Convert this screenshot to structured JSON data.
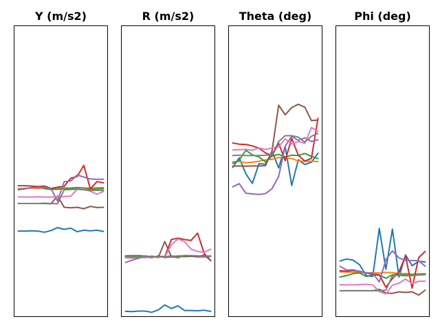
{
  "chart_data": [
    {
      "type": "line",
      "title": "Y (m/s2)",
      "xlabel": "",
      "ylabel": "",
      "ylim": [
        0,
        100
      ],
      "grid": false,
      "series": [
        {
          "color": "#1f77b4",
          "values": [
            29.4,
            29.4,
            29.5,
            29.4,
            29.0,
            29.6,
            30.6,
            30.0,
            30.4,
            29.2,
            29.7,
            29.5,
            29.7,
            29.3
          ]
        },
        {
          "color": "#ff7f0e",
          "values": [
            44.0,
            44.0,
            44.2,
            44.1,
            44.3,
            44.0,
            44.2,
            44.3,
            44.2,
            44.4,
            44.3,
            44.2,
            44.3,
            44.4
          ]
        },
        {
          "color": "#2ca02c",
          "values": [
            43.7,
            44.1,
            44.3,
            44.6,
            44.0,
            43.7,
            43.8,
            43.9,
            44.1,
            44.3,
            44.0,
            43.8,
            43.9,
            44.0
          ]
        },
        {
          "color": "#d62728",
          "values": [
            45.0,
            45.0,
            44.9,
            44.7,
            44.9,
            44.1,
            44.5,
            44.8,
            47.6,
            48.2,
            52.0,
            43.9,
            46.4,
            46.0
          ]
        },
        {
          "color": "#9467bd",
          "values": [
            43.6,
            43.9,
            44.4,
            44.4,
            44.5,
            44.0,
            39.7,
            46.4,
            46.6,
            48.7,
            48.0,
            47.3,
            47.2,
            47.2
          ]
        },
        {
          "color": "#8c564b",
          "values": [
            38.9,
            38.9,
            38.9,
            38.9,
            38.9,
            38.8,
            41.5,
            37.6,
            37.4,
            37.6,
            37.1,
            37.9,
            37.5,
            37.6
          ]
        },
        {
          "color": "#e377c2",
          "values": [
            41.2,
            41.1,
            41.1,
            41.2,
            41.1,
            41.1,
            41.2,
            41.3,
            41.4,
            43.8,
            43.9,
            43.1,
            42.1,
            43.0
          ]
        },
        {
          "color": "#7f7f7f",
          "values": [
            38.9,
            38.9,
            38.9,
            38.9,
            39.0,
            38.9,
            38.8,
            43.6,
            43.7,
            43.8,
            43.6,
            43.3,
            43.4,
            43.4
          ]
        }
      ]
    },
    {
      "type": "line",
      "title": "R (m/s2)",
      "xlabel": "",
      "ylabel": "",
      "ylim": [
        0,
        100
      ],
      "grid": false,
      "series": [
        {
          "color": "#1f77b4",
          "values": [
            1.8,
            1.7,
            1.9,
            1.9,
            1.5,
            2.3,
            4.0,
            2.8,
            3.7,
            2.1,
            2.1,
            2.0,
            2.2,
            1.8
          ]
        },
        {
          "color": "#ff7f0e",
          "values": [
            20.3,
            20.4,
            20.5,
            20.4,
            20.6,
            20.6,
            20.5,
            20.7,
            20.9,
            21.0,
            20.9,
            20.8,
            20.7,
            20.7
          ]
        },
        {
          "color": "#2ca02c",
          "values": [
            20.9,
            21.0,
            21.0,
            20.8,
            20.2,
            20.9,
            20.3,
            20.5,
            20.7,
            20.6,
            20.7,
            20.6,
            20.5,
            20.7
          ]
        },
        {
          "color": "#d62728",
          "values": [
            20.3,
            20.2,
            20.4,
            20.3,
            20.4,
            20.6,
            20.7,
            26.5,
            27.0,
            26.5,
            26.2,
            28.7,
            21.7,
            19.3
          ]
        },
        {
          "color": "#9467bd",
          "values": [
            18.6,
            19.4,
            20.1,
            20.9,
            20.6,
            20.5,
            20.6,
            20.9,
            20.2,
            21.0,
            20.8,
            20.5,
            20.5,
            20.7
          ]
        },
        {
          "color": "#8c564b",
          "values": [
            20.4,
            20.5,
            20.3,
            20.3,
            20.8,
            20.3,
            25.8,
            20.6,
            20.5,
            20.9,
            20.8,
            20.6,
            21.2,
            19.2
          ]
        },
        {
          "color": "#e377c2",
          "values": [
            20.4,
            20.3,
            20.5,
            20.3,
            20.4,
            20.5,
            20.6,
            24.7,
            26.7,
            25.8,
            23.2,
            22.4,
            22.1,
            23.2
          ]
        },
        {
          "color": "#7f7f7f",
          "values": [
            20.6,
            20.6,
            20.5,
            20.6,
            20.6,
            20.6,
            20.5,
            20.5,
            20.3,
            21.0,
            21.0,
            20.9,
            20.8,
            20.9
          ]
        }
      ]
    },
    {
      "type": "line",
      "title": "Theta (deg)",
      "xlabel": "",
      "ylabel": "",
      "ylim": [
        0,
        100
      ],
      "grid": false,
      "series": [
        {
          "color": "#1f77b4",
          "values": [
            51.3,
            54.6,
            49.1,
            45.8,
            52.6,
            52.4,
            56.8,
            51.1,
            58.5,
            45.1,
            53.9,
            52.3,
            53.1,
            56.2
          ]
        },
        {
          "color": "#ff7f0e",
          "values": [
            53.2,
            53.3,
            52.9,
            53.1,
            53.4,
            53.9,
            54.1,
            54.7,
            54.5,
            54.4,
            53.5,
            53.4,
            53.4,
            53.3
          ]
        },
        {
          "color": "#2ca02c",
          "values": [
            52.7,
            53.8,
            57.2,
            55.6,
            54.9,
            53.2,
            55.2,
            55.8,
            54.9,
            55.5,
            55.4,
            56.1,
            55.1,
            54.3
          ]
        },
        {
          "color": "#d62728",
          "values": [
            59.7,
            59.3,
            59.2,
            58.7,
            57.9,
            56.3,
            55.3,
            59.6,
            53.6,
            61.3,
            55.5,
            53.5,
            54.4,
            68.2
          ]
        },
        {
          "color": "#9467bd",
          "values": [
            44.6,
            45.7,
            42.4,
            42.2,
            42.0,
            42.3,
            44.0,
            48.2,
            58.6,
            62.0,
            60.6,
            61.5,
            60.2,
            60.8
          ]
        },
        {
          "color": "#8c564b",
          "values": [
            51.7,
            51.8,
            51.7,
            51.8,
            51.8,
            51.9,
            57.0,
            72.7,
            69.4,
            71.9,
            73.0,
            72.0,
            67.4,
            67.6
          ]
        },
        {
          "color": "#e377c2",
          "values": [
            57.3,
            57.4,
            57.5,
            57.2,
            58.0,
            57.5,
            58.0,
            58.4,
            61.1,
            59.4,
            60.2,
            59.6,
            65.0,
            63.7
          ]
        },
        {
          "color": "#7f7f7f",
          "values": [
            55.4,
            55.5,
            55.4,
            55.4,
            55.4,
            55.5,
            55.6,
            60.2,
            62.2,
            62.2,
            61.7,
            60.0,
            62.0,
            63.0
          ]
        }
      ]
    },
    {
      "type": "line",
      "title": "Phi (deg)",
      "xlabel": "",
      "ylabel": "",
      "ylim": [
        0,
        100
      ],
      "grid": false,
      "series": [
        {
          "color": "#1f77b4",
          "values": [
            19.1,
            19.8,
            19.4,
            17.8,
            14.1,
            13.8,
            30.3,
            16.3,
            30.1,
            13.6,
            21.2,
            17.5,
            19.0,
            18.8
          ]
        },
        {
          "color": "#ff7f0e",
          "values": [
            15.4,
            15.3,
            15.3,
            15.2,
            15.0,
            15.1,
            15.0,
            15.2,
            15.1,
            14.8,
            14.8,
            14.6,
            14.7,
            14.7
          ]
        },
        {
          "color": "#2ca02c",
          "values": [
            13.6,
            14.1,
            14.8,
            15.0,
            13.8,
            14.4,
            14.2,
            13.2,
            14.4,
            14.5,
            14.3,
            14.4,
            14.4,
            14.7
          ]
        },
        {
          "color": "#d62728",
          "values": [
            15.8,
            15.6,
            15.9,
            15.6,
            15.0,
            14.6,
            14.4,
            10.1,
            13.1,
            15.4,
            20.8,
            9.8,
            20.3,
            22.4
          ]
        },
        {
          "color": "#9467bd",
          "values": [
            17.3,
            16.0,
            16.1,
            15.5,
            15.1,
            15.0,
            11.9,
            19.6,
            22.6,
            20.2,
            19.3,
            19.3,
            19.2,
            17.3
          ]
        },
        {
          "color": "#8c564b",
          "values": [
            8.9,
            8.9,
            8.9,
            8.9,
            8.9,
            8.9,
            9.4,
            8.1,
            8.0,
            8.5,
            8.3,
            8.5,
            7.4,
            9.1
          ]
        },
        {
          "color": "#e377c2",
          "values": [
            11.0,
            10.9,
            10.9,
            11.0,
            11.1,
            10.9,
            8.6,
            7.8,
            10.8,
            11.5,
            12.9,
            11.3,
            12.1,
            12.2
          ]
        },
        {
          "color": "#7f7f7f",
          "values": [
            8.9,
            8.9,
            8.9,
            8.9,
            8.9,
            8.9,
            8.9,
            9.1,
            14.1,
            14.2,
            14.0,
            14.1,
            14.3,
            14.4
          ]
        }
      ]
    }
  ]
}
